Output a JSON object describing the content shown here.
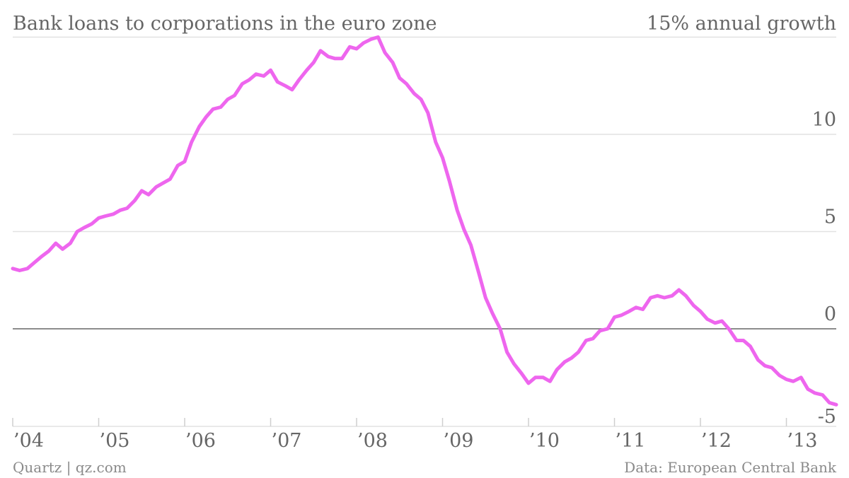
{
  "chart_data": {
    "type": "line",
    "title": "Bank loans to corporations in the euro zone",
    "unit_label": "15% annual growth",
    "source": "Data: European Central Bank",
    "credit": "Quartz | qz.com",
    "x_ticks": [
      {
        "label": "’04",
        "x": 2004
      },
      {
        "label": "’05",
        "x": 2005
      },
      {
        "label": "’06",
        "x": 2006
      },
      {
        "label": "’07",
        "x": 2007
      },
      {
        "label": "’08",
        "x": 2008
      },
      {
        "label": "’09",
        "x": 2009
      },
      {
        "label": "’10",
        "x": 2010
      },
      {
        "label": "’11",
        "x": 2011
      },
      {
        "label": "’12",
        "x": 2012
      },
      {
        "label": "’13",
        "x": 2013
      }
    ],
    "y_ticks": [
      {
        "label": "10",
        "y": 10
      },
      {
        "label": "5",
        "y": 5
      },
      {
        "label": "0",
        "y": 0
      },
      {
        "label": "-5",
        "y": -5
      }
    ],
    "xlim": [
      2004.0,
      2013.58
    ],
    "ylim": [
      -5,
      15
    ],
    "grid": true,
    "series": [
      {
        "color": "#ee66ee",
        "x": [
          2004.0,
          2004.08,
          2004.17,
          2004.25,
          2004.33,
          2004.42,
          2004.5,
          2004.58,
          2004.67,
          2004.75,
          2004.83,
          2004.92,
          2005.0,
          2005.08,
          2005.17,
          2005.25,
          2005.33,
          2005.42,
          2005.5,
          2005.58,
          2005.67,
          2005.75,
          2005.83,
          2005.92,
          2006.0,
          2006.08,
          2006.17,
          2006.25,
          2006.33,
          2006.42,
          2006.5,
          2006.58,
          2006.67,
          2006.75,
          2006.83,
          2006.92,
          2007.0,
          2007.08,
          2007.17,
          2007.25,
          2007.33,
          2007.42,
          2007.5,
          2007.58,
          2007.67,
          2007.75,
          2007.83,
          2007.92,
          2008.0,
          2008.08,
          2008.17,
          2008.25,
          2008.33,
          2008.42,
          2008.5,
          2008.58,
          2008.67,
          2008.75,
          2008.83,
          2008.92,
          2009.0,
          2009.08,
          2009.17,
          2009.25,
          2009.33,
          2009.42,
          2009.5,
          2009.58,
          2009.67,
          2009.75,
          2009.83,
          2009.92,
          2010.0,
          2010.08,
          2010.17,
          2010.25,
          2010.33,
          2010.42,
          2010.5,
          2010.58,
          2010.67,
          2010.75,
          2010.83,
          2010.92,
          2011.0,
          2011.08,
          2011.17,
          2011.25,
          2011.33,
          2011.42,
          2011.5,
          2011.58,
          2011.67,
          2011.75,
          2011.83,
          2011.92,
          2012.0,
          2012.08,
          2012.17,
          2012.25,
          2012.33,
          2012.42,
          2012.5,
          2012.58,
          2012.67,
          2012.75,
          2012.83,
          2012.92,
          2013.0,
          2013.08,
          2013.17,
          2013.25,
          2013.33,
          2013.42,
          2013.5,
          2013.58
        ],
        "values": [
          3.1,
          3.0,
          3.1,
          3.4,
          3.7,
          4.0,
          4.4,
          4.1,
          4.4,
          5.0,
          5.2,
          5.4,
          5.7,
          5.8,
          5.9,
          6.1,
          6.2,
          6.6,
          7.1,
          6.9,
          7.3,
          7.5,
          7.7,
          8.4,
          8.6,
          9.6,
          10.4,
          10.9,
          11.3,
          11.4,
          11.8,
          12.0,
          12.6,
          12.8,
          13.1,
          13.0,
          13.3,
          12.7,
          12.5,
          12.3,
          12.8,
          13.3,
          13.7,
          14.3,
          14.0,
          13.9,
          13.9,
          14.5,
          14.4,
          14.7,
          14.9,
          15.0,
          14.2,
          13.7,
          12.9,
          12.6,
          12.1,
          11.8,
          11.1,
          9.6,
          8.8,
          7.6,
          6.1,
          5.1,
          4.3,
          2.9,
          1.6,
          0.8,
          0.0,
          -1.2,
          -1.8,
          -2.3,
          -2.8,
          -2.5,
          -2.5,
          -2.7,
          -2.1,
          -1.7,
          -1.5,
          -1.2,
          -0.6,
          -0.5,
          -0.1,
          0.0,
          0.6,
          0.7,
          0.9,
          1.1,
          1.0,
          1.6,
          1.7,
          1.6,
          1.7,
          2.0,
          1.7,
          1.2,
          0.9,
          0.5,
          0.3,
          0.4,
          0.0,
          -0.6,
          -0.6,
          -0.9,
          -1.6,
          -1.9,
          -2.0,
          -2.4,
          -2.6,
          -2.7,
          -2.5,
          -3.1,
          -3.3,
          -3.4,
          -3.8,
          -3.9
        ]
      }
    ]
  }
}
